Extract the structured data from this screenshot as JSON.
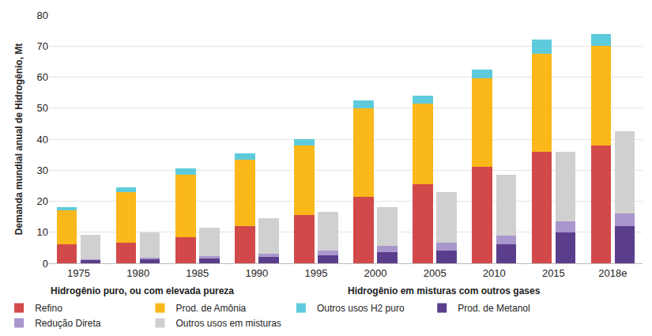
{
  "chart_data": {
    "type": "bar",
    "stacked": true,
    "grid": true,
    "legend": "bottom",
    "y_label": "Demanda mundial anual de Hidrogênio, Mt",
    "categories": [
      "1975",
      "1980",
      "1985",
      "1990",
      "1995",
      "2000",
      "2005",
      "2010",
      "2015",
      "2018e"
    ],
    "ylim": [
      0,
      80
    ],
    "yticks": [
      0,
      10,
      20,
      30,
      40,
      50,
      60,
      70,
      80
    ],
    "groups": [
      {
        "label": "Hidrogênio puro, ou com elevada pureza",
        "series": [
          {
            "name": "Refino",
            "color": "#d2494a",
            "values": [
              6,
              6.5,
              8.5,
              12,
              15.5,
              21.5,
              25.5,
              31,
              36,
              38
            ]
          },
          {
            "name": "Prod. de Amônia",
            "color": "#fbb81a",
            "values": [
              11,
              16.5,
              20,
              21.5,
              22.5,
              28.5,
              26,
              28.5,
              31.5,
              32
            ]
          },
          {
            "name": "Outros usos H2 puro",
            "color": "#5ecbdc",
            "values": [
              1,
              1.5,
              2,
              2,
              2,
              2.5,
              2.5,
              3,
              4.5,
              4
            ]
          }
        ]
      },
      {
        "label": "Hidrogênio em misturas com outros gases",
        "series": [
          {
            "name": "Prod. de Metanol",
            "color": "#5b3e8b",
            "values": [
              1,
              1.2,
              1.5,
              2,
              2.5,
              3.5,
              4,
              6,
              10,
              12
            ]
          },
          {
            "name": "Redução Direta",
            "color": "#a896cc",
            "values": [
              0.3,
              0.5,
              0.8,
              1,
              1.5,
              2,
              2.5,
              3,
              3.5,
              4
            ]
          },
          {
            "name": "Outros usos em misturas",
            "color": "#d0d0d0",
            "values": [
              8,
              8.3,
              9.2,
              11.5,
              12.5,
              12.5,
              16.5,
              19.5,
              22.5,
              26.5
            ]
          }
        ]
      }
    ]
  }
}
